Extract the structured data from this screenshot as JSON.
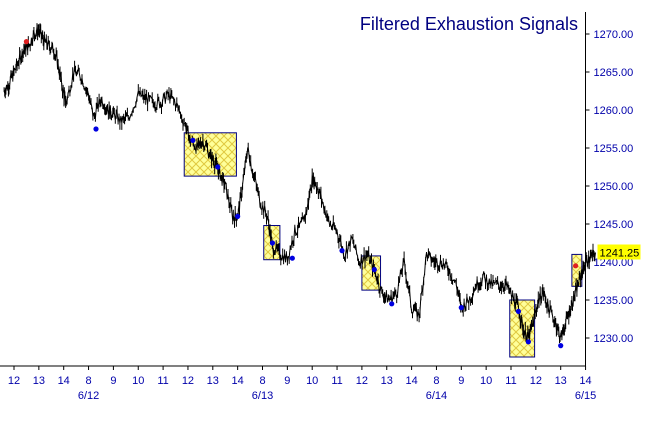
{
  "chart_data": {
    "type": "line",
    "title": "Filtered Exhaustion Signals",
    "xlabel": "",
    "ylabel": "",
    "ylim": [
      1225,
      1273
    ],
    "yticks": [
      "1230.00",
      "1235.00",
      "1240.00",
      "1245.00",
      "1250.00",
      "1255.00",
      "1260.00",
      "1265.00",
      "1270.00"
    ],
    "xlim": [
      0,
      23
    ],
    "x_ticks": [
      {
        "x": 0,
        "label": "12"
      },
      {
        "x": 1,
        "label": "13"
      },
      {
        "x": 2,
        "label": "14"
      },
      {
        "x": 3,
        "label": "8"
      },
      {
        "x": 4,
        "label": "9"
      },
      {
        "x": 5,
        "label": "10"
      },
      {
        "x": 6,
        "label": "11"
      },
      {
        "x": 7,
        "label": "12"
      },
      {
        "x": 8,
        "label": "13"
      },
      {
        "x": 9,
        "label": "14"
      },
      {
        "x": 10,
        "label": "8"
      },
      {
        "x": 11,
        "label": "9"
      },
      {
        "x": 12,
        "label": "10"
      },
      {
        "x": 13,
        "label": "11"
      },
      {
        "x": 14,
        "label": "12"
      },
      {
        "x": 15,
        "label": "13"
      },
      {
        "x": 16,
        "label": "14"
      },
      {
        "x": 17,
        "label": "8"
      },
      {
        "x": 18,
        "label": "9"
      },
      {
        "x": 19,
        "label": "10"
      },
      {
        "x": 20,
        "label": "11"
      },
      {
        "x": 21,
        "label": "12"
      },
      {
        "x": 22,
        "label": "13"
      },
      {
        "x": 23,
        "label": "14"
      }
    ],
    "date_labels": [
      {
        "x": 3,
        "label": "6/12"
      },
      {
        "x": 10,
        "label": "6/13"
      },
      {
        "x": 17,
        "label": "6/14"
      },
      {
        "x": 23,
        "label": "6/15"
      }
    ],
    "last_value": "1241.25",
    "grid": false,
    "series": [
      {
        "points": [
          [
            -0.4,
            1262.5
          ],
          [
            -0.2,
            1263.5
          ],
          [
            0,
            1265
          ],
          [
            0.2,
            1266.5
          ],
          [
            0.4,
            1268
          ],
          [
            0.6,
            1268.5
          ],
          [
            0.8,
            1270
          ],
          [
            1,
            1270.5
          ],
          [
            1.2,
            1269
          ],
          [
            1.4,
            1268.5
          ],
          [
            1.6,
            1268
          ],
          [
            1.8,
            1265.5
          ],
          [
            2,
            1262
          ],
          [
            2.1,
            1261
          ],
          [
            2.4,
            1265
          ],
          [
            2.7,
            1264.5
          ],
          [
            3,
            1262
          ],
          [
            3.2,
            1259
          ],
          [
            3.5,
            1261.5
          ],
          [
            3.8,
            1260
          ],
          [
            4,
            1259.5
          ],
          [
            4.3,
            1258.5
          ],
          [
            4.6,
            1259
          ],
          [
            5,
            1262
          ],
          [
            5.3,
            1261.5
          ],
          [
            5.6,
            1261
          ],
          [
            5.9,
            1261
          ],
          [
            6.2,
            1262
          ],
          [
            6.5,
            1261
          ],
          [
            6.9,
            1258
          ],
          [
            7.1,
            1256
          ],
          [
            7.4,
            1255
          ],
          [
            7.6,
            1256
          ],
          [
            7.9,
            1254
          ],
          [
            8.1,
            1253
          ],
          [
            8.3,
            1251.5
          ],
          [
            8.5,
            1250
          ],
          [
            8.8,
            1246
          ],
          [
            9,
            1246
          ],
          [
            9.2,
            1250
          ],
          [
            9.4,
            1255
          ],
          [
            9.6,
            1252
          ],
          [
            9.9,
            1248
          ],
          [
            10.2,
            1246
          ],
          [
            10.4,
            1242
          ],
          [
            10.7,
            1241
          ],
          [
            11,
            1240.5
          ],
          [
            11.3,
            1244
          ],
          [
            11.6,
            1245
          ],
          [
            11.8,
            1247
          ],
          [
            12,
            1251
          ],
          [
            12.2,
            1250
          ],
          [
            12.4,
            1248
          ],
          [
            12.7,
            1245
          ],
          [
            13,
            1244
          ],
          [
            13.3,
            1241
          ],
          [
            13.6,
            1243
          ],
          [
            13.9,
            1240
          ],
          [
            14.2,
            1241
          ],
          [
            14.5,
            1239
          ],
          [
            14.8,
            1236
          ],
          [
            15.1,
            1235
          ],
          [
            15.4,
            1236
          ],
          [
            15.7,
            1240
          ],
          [
            16,
            1234
          ],
          [
            16.3,
            1233
          ],
          [
            16.6,
            1241
          ],
          [
            16.9,
            1240
          ],
          [
            17.2,
            1240
          ],
          [
            17.5,
            1239
          ],
          [
            17.8,
            1237
          ],
          [
            18,
            1234
          ],
          [
            18.3,
            1235
          ],
          [
            18.6,
            1237
          ],
          [
            18.9,
            1238
          ],
          [
            19.2,
            1237
          ],
          [
            19.5,
            1237
          ],
          [
            19.8,
            1237
          ],
          [
            20.1,
            1235
          ],
          [
            20.3,
            1234
          ],
          [
            20.5,
            1231
          ],
          [
            20.7,
            1230
          ],
          [
            20.9,
            1232
          ],
          [
            21.1,
            1235
          ],
          [
            21.3,
            1236
          ],
          [
            21.5,
            1234
          ],
          [
            21.8,
            1232
          ],
          [
            22,
            1230
          ],
          [
            22.2,
            1232
          ],
          [
            22.4,
            1234
          ],
          [
            22.6,
            1236
          ],
          [
            22.8,
            1238
          ],
          [
            23,
            1240
          ],
          [
            23.2,
            1240.5
          ],
          [
            23.4,
            1241.25
          ]
        ]
      }
    ],
    "signals": [
      {
        "x": 0.5,
        "y": 1269,
        "color": "#e02020"
      },
      {
        "x": 3.3,
        "y": 1257.5,
        "color": "#0000e0"
      },
      {
        "x": 7.2,
        "y": 1256,
        "color": "#0000e0"
      },
      {
        "x": 8.2,
        "y": 1252.5,
        "color": "#0000e0"
      },
      {
        "x": 9,
        "y": 1246,
        "color": "#0000e0"
      },
      {
        "x": 10.4,
        "y": 1242.5,
        "color": "#0000e0"
      },
      {
        "x": 11.2,
        "y": 1240.5,
        "color": "#0000e0"
      },
      {
        "x": 13.2,
        "y": 1241.5,
        "color": "#0000e0"
      },
      {
        "x": 14.5,
        "y": 1239,
        "color": "#0000e0"
      },
      {
        "x": 15.2,
        "y": 1234.5,
        "color": "#0000e0"
      },
      {
        "x": 18,
        "y": 1234,
        "color": "#0000e0"
      },
      {
        "x": 20.3,
        "y": 1233.5,
        "color": "#0000e0"
      },
      {
        "x": 20.7,
        "y": 1229.5,
        "color": "#0000e0"
      },
      {
        "x": 22,
        "y": 1229,
        "color": "#0000e0"
      },
      {
        "x": 22.6,
        "y": 1239.5,
        "color": "#e02020"
      }
    ],
    "zones": [
      {
        "x0": 6.85,
        "x1": 8.95,
        "y0": 1251.3,
        "y1": 1257
      },
      {
        "x0": 10.05,
        "x1": 10.7,
        "y0": 1240.3,
        "y1": 1244.8
      },
      {
        "x0": 14,
        "x1": 14.75,
        "y0": 1236.3,
        "y1": 1240.8
      },
      {
        "x0": 19.95,
        "x1": 20.95,
        "y0": 1227.5,
        "y1": 1235
      },
      {
        "x0": 22.45,
        "x1": 22.85,
        "y0": 1236.8,
        "y1": 1241
      }
    ],
    "colors": {
      "price": "#000000",
      "axis_text": "#0000aa",
      "title": "#000080",
      "zone_fill": "#ffff99",
      "zone_hatch": "#e0c840",
      "zone_border": "#000080",
      "last_value_bg": "#ffff00"
    }
  }
}
